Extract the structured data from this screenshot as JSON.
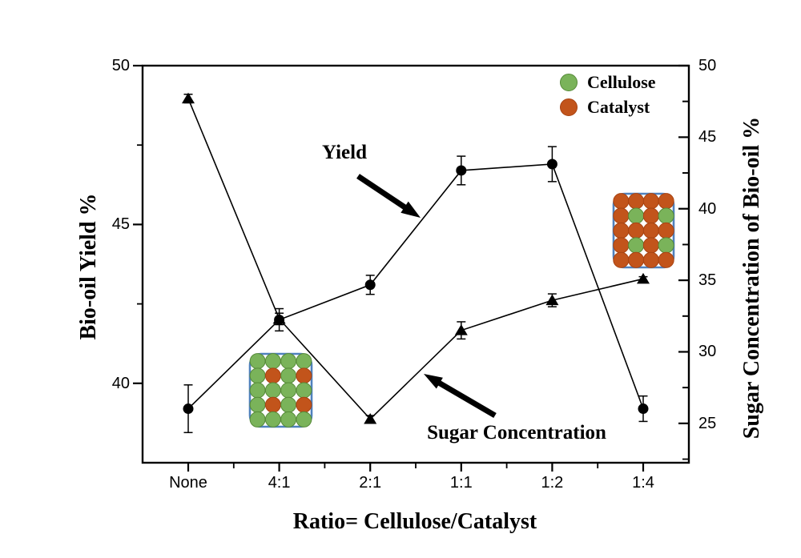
{
  "figure": {
    "x_axis_title": "Ratio= Cellulose/Catalyst",
    "left_axis_title": "Bio-oil Yield %",
    "right_axis_title": "Sugar Concentration of Bio-oil %"
  },
  "legend": {
    "items": [
      {
        "label": "Cellulose",
        "color": "#7ab35a",
        "border": "#568a38"
      },
      {
        "label": "Catalyst",
        "color": "#c2541b",
        "border": "#a84312"
      }
    ]
  },
  "annotations": {
    "yield_label": "Yield",
    "sugar_label": "Sugar Concentration"
  },
  "chart_data": {
    "type": "line",
    "title": "",
    "categories": [
      "None",
      "4:1",
      "2:1",
      "1:1",
      "1:2",
      "1:4"
    ],
    "x_axis_label": "Ratio= Cellulose/Catalyst",
    "grid": false,
    "legend_position": "top-right",
    "left_axis": {
      "label": "Bio-oil Yield %",
      "ticks": [
        40,
        45,
        50
      ],
      "minor_step": 2.5,
      "range": [
        37.5,
        50
      ]
    },
    "right_axis": {
      "label": "Sugar Concentration of Bio-oil %",
      "ticks": [
        25,
        30,
        35,
        40,
        45,
        50
      ],
      "minor_step": 2.5,
      "range": [
        22.25,
        50
      ]
    },
    "series": [
      {
        "name": "Bio-oil Yield",
        "axis": "left",
        "marker": "circle",
        "color": "#000000",
        "values": [
          39.2,
          42.0,
          43.1,
          46.7,
          46.9,
          39.2
        ],
        "errors": [
          0.75,
          0.35,
          0.3,
          0.45,
          0.55,
          0.4
        ]
      },
      {
        "name": "Sugar Concentration",
        "axis": "right",
        "marker": "triangle",
        "color": "#000000",
        "values": [
          47.7,
          32.3,
          25.3,
          31.5,
          33.6,
          35.1
        ],
        "errors": [
          0.3,
          0.4,
          0.25,
          0.6,
          0.45,
          0.15
        ]
      }
    ]
  },
  "insets": [
    {
      "name": "cellulose-rich-grid",
      "rows": [
        "gggg",
        "gogo",
        "gggg",
        "gogo",
        "gggg"
      ],
      "border_color": "#4f81bd"
    },
    {
      "name": "catalyst-rich-grid",
      "rows": [
        "oooo",
        "ogog",
        "oooo",
        "ogog",
        "oooo"
      ],
      "border_color": "#4f81bd"
    }
  ]
}
